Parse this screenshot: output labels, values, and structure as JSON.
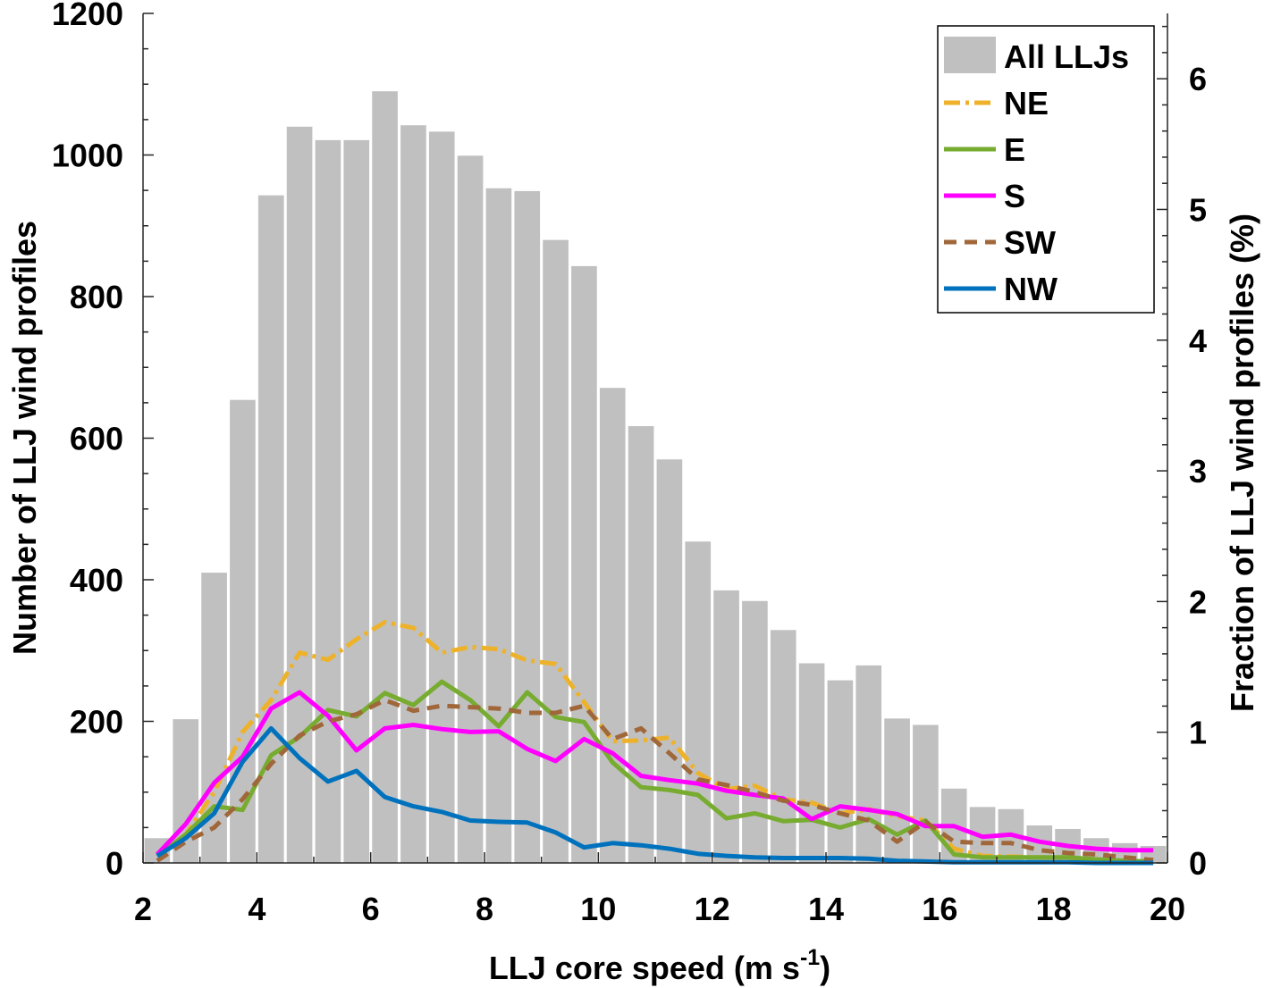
{
  "chart_data": {
    "type": "bar+line",
    "title": "",
    "xlabel": "LLJ core speed (m s",
    "xlabel_sup": "-1",
    "xlabel_close": ")",
    "ylabel_left": "Number of LLJ wind profiles",
    "ylabel_right": "Fraction of LLJ wind profiles (%)",
    "xlim": [
      2,
      20
    ],
    "ylim_left": [
      0,
      1200
    ],
    "ylim_right": [
      0,
      6.5
    ],
    "xticks": [
      "2",
      "4",
      "6",
      "8",
      "10",
      "12",
      "14",
      "16",
      "18",
      "20"
    ],
    "yticks_left": [
      "0",
      "200",
      "400",
      "600",
      "800",
      "1000",
      "1200"
    ],
    "yticks_right": [
      "0",
      "1",
      "2",
      "3",
      "4",
      "5",
      "6"
    ],
    "legend_position": "top-right",
    "bars": {
      "name": "All LLJs",
      "color": "#c0c0c0",
      "x": [
        2.25,
        2.75,
        3.25,
        3.75,
        4.25,
        4.75,
        5.25,
        5.75,
        6.25,
        6.75,
        7.25,
        7.75,
        8.25,
        8.75,
        9.25,
        9.75,
        10.25,
        10.75,
        11.25,
        11.75,
        12.25,
        12.75,
        13.25,
        13.75,
        14.25,
        14.75,
        15.25,
        15.75,
        16.25,
        16.75,
        17.25,
        17.75,
        18.25,
        18.75,
        19.25,
        19.75
      ],
      "values": [
        35,
        203,
        410,
        654,
        943,
        1040,
        1021,
        1021,
        1090,
        1042,
        1033,
        999,
        953,
        949,
        880,
        843,
        671,
        617,
        570,
        454,
        385,
        370,
        329,
        282,
        258,
        279,
        204,
        195,
        105,
        79,
        76,
        53,
        48,
        35,
        28,
        24
      ]
    },
    "x_lines": [
      2.25,
      2.75,
      3.25,
      3.75,
      4.25,
      4.75,
      5.25,
      5.75,
      6.25,
      6.75,
      7.25,
      7.75,
      8.25,
      8.75,
      9.25,
      9.75,
      10.25,
      10.75,
      11.25,
      11.75,
      12.25,
      12.75,
      13.25,
      13.75,
      14.25,
      14.75,
      15.25,
      15.75,
      16.25,
      16.75,
      17.25,
      17.75,
      18.25,
      18.75,
      19.25,
      19.75
    ],
    "series": [
      {
        "name": "NE",
        "color": "#eeb22a",
        "dash": "18,6,4,6",
        "values": [
          10,
          40,
          100,
          185,
          230,
          297,
          287,
          316,
          340,
          332,
          297,
          305,
          302,
          286,
          281,
          227,
          172,
          173,
          177,
          127,
          104,
          109,
          90,
          85,
          70,
          76,
          66,
          60,
          20,
          10,
          9,
          8,
          7,
          5,
          3,
          2
        ]
      },
      {
        "name": "E",
        "color": "#77ac30",
        "dash": "",
        "values": [
          10,
          40,
          80,
          75,
          152,
          178,
          216,
          207,
          240,
          223,
          256,
          230,
          193,
          241,
          206,
          199,
          142,
          107,
          103,
          96,
          63,
          70,
          59,
          61,
          50,
          62,
          40,
          60,
          12,
          8,
          8,
          8,
          8,
          5,
          3,
          2
        ]
      },
      {
        "name": "S",
        "color": "#ff00ff",
        "dash": "",
        "values": [
          12,
          55,
          113,
          150,
          218,
          241,
          208,
          159,
          190,
          195,
          189,
          185,
          186,
          161,
          144,
          175,
          155,
          123,
          117,
          112,
          102,
          96,
          91,
          62,
          80,
          75,
          69,
          52,
          52,
          37,
          40,
          30,
          24,
          20,
          18,
          18
        ]
      },
      {
        "name": "SW",
        "color": "#a0673a",
        "dash": "14,9",
        "values": [
          3,
          30,
          50,
          90,
          140,
          180,
          200,
          210,
          230,
          215,
          222,
          220,
          218,
          212,
          212,
          222,
          175,
          190,
          155,
          118,
          110,
          100,
          88,
          82,
          70,
          60,
          30,
          58,
          30,
          28,
          28,
          18,
          14,
          12,
          8,
          4
        ]
      },
      {
        "name": "NW",
        "color": "#0072bd",
        "dash": "",
        "values": [
          10,
          35,
          70,
          143,
          190,
          148,
          115,
          130,
          93,
          80,
          72,
          60,
          58,
          57,
          43,
          22,
          28,
          25,
          20,
          13,
          10,
          8,
          7,
          7,
          7,
          6,
          3,
          2,
          1,
          1,
          1,
          1,
          1,
          0,
          0,
          0
        ]
      }
    ]
  }
}
